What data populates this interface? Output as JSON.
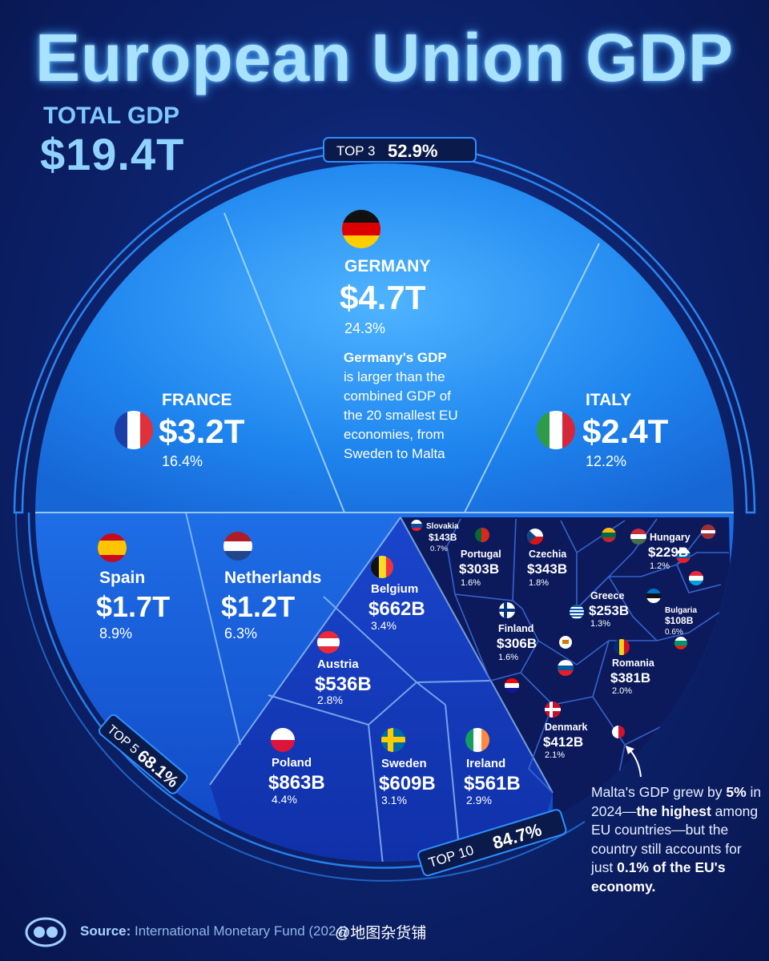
{
  "title": "European Union GDP",
  "total": {
    "label": "TOTAL GDP",
    "value": "$19.4T"
  },
  "groups": {
    "top3": {
      "label": "TOP 3",
      "value": "52.9%"
    },
    "top5": {
      "label": "TOP 5",
      "value": "68.1%"
    },
    "top10": {
      "label": "TOP 10",
      "value": "84.7%"
    }
  },
  "germany_note": [
    "Germany's GDP",
    "is larger than the",
    "combined GDP of",
    "the 20 smallest EU",
    "economies, from",
    "Sweden to Malta"
  ],
  "malta_note": {
    "part1": "Malta's GDP grew by ",
    "bold1": "5%",
    "part2": " in 2024—",
    "bold2": "the highest",
    "part3": " among EU countries—but the country still accounts for just ",
    "bold3": "0.1% of the EU's economy."
  },
  "source": {
    "label": "Source:",
    "text": "International Monetary Fund (2024)"
  },
  "watermark": "@地图杂货铺",
  "colors": {
    "ring": "#2d8fff",
    "top3_fill": "#1f86ef",
    "top5_fill": "#1556d8",
    "top10_fill": "#1338b8",
    "rest_fill": "#0c1a5c",
    "title_glow": "#a9e2ff"
  },
  "chart_data": {
    "type": "voronoi-treemap",
    "unit": "USD",
    "countries": [
      {
        "name": "GERMANY",
        "value": "$4.7T",
        "share": "24.3%",
        "flag": "germany-flag"
      },
      {
        "name": "FRANCE",
        "value": "$3.2T",
        "share": "16.4%",
        "flag": "france-flag"
      },
      {
        "name": "ITALY",
        "value": "$2.4T",
        "share": "12.2%",
        "flag": "italy-flag"
      },
      {
        "name": "Spain",
        "value": "$1.7T",
        "share": "8.9%",
        "flag": "spain-flag"
      },
      {
        "name": "Netherlands",
        "value": "$1.2T",
        "share": "6.3%",
        "flag": "netherlands-flag"
      },
      {
        "name": "Poland",
        "value": "$863B",
        "share": "4.4%",
        "flag": "poland-flag"
      },
      {
        "name": "Belgium",
        "value": "$662B",
        "share": "3.4%",
        "flag": "belgium-flag"
      },
      {
        "name": "Sweden",
        "value": "$609B",
        "share": "3.1%",
        "flag": "sweden-flag"
      },
      {
        "name": "Ireland",
        "value": "$561B",
        "share": "2.9%",
        "flag": "ireland-flag"
      },
      {
        "name": "Austria",
        "value": "$536B",
        "share": "2.8%",
        "flag": "austria-flag"
      },
      {
        "name": "Denmark",
        "value": "$412B",
        "share": "2.1%",
        "flag": "denmark-flag"
      },
      {
        "name": "Romania",
        "value": "$381B",
        "share": "2.0%",
        "flag": "romania-flag"
      },
      {
        "name": "Czechia",
        "value": "$343B",
        "share": "1.8%",
        "flag": "czechia-flag"
      },
      {
        "name": "Finland",
        "value": "$306B",
        "share": "1.6%",
        "flag": "finland-flag"
      },
      {
        "name": "Portugal",
        "value": "$303B",
        "share": "1.6%",
        "flag": "portugal-flag"
      },
      {
        "name": "Greece",
        "value": "$253B",
        "share": "1.3%",
        "flag": "greece-flag"
      },
      {
        "name": "Hungary",
        "value": "$229B",
        "share": "1.2%",
        "flag": "hungary-flag"
      },
      {
        "name": "Slovakia",
        "value": "$143B",
        "share": "0.7%",
        "flag": "slovakia-flag"
      },
      {
        "name": "Bulgaria",
        "value": "$108B",
        "share": "0.6%",
        "flag": "bulgaria-flag"
      }
    ]
  }
}
